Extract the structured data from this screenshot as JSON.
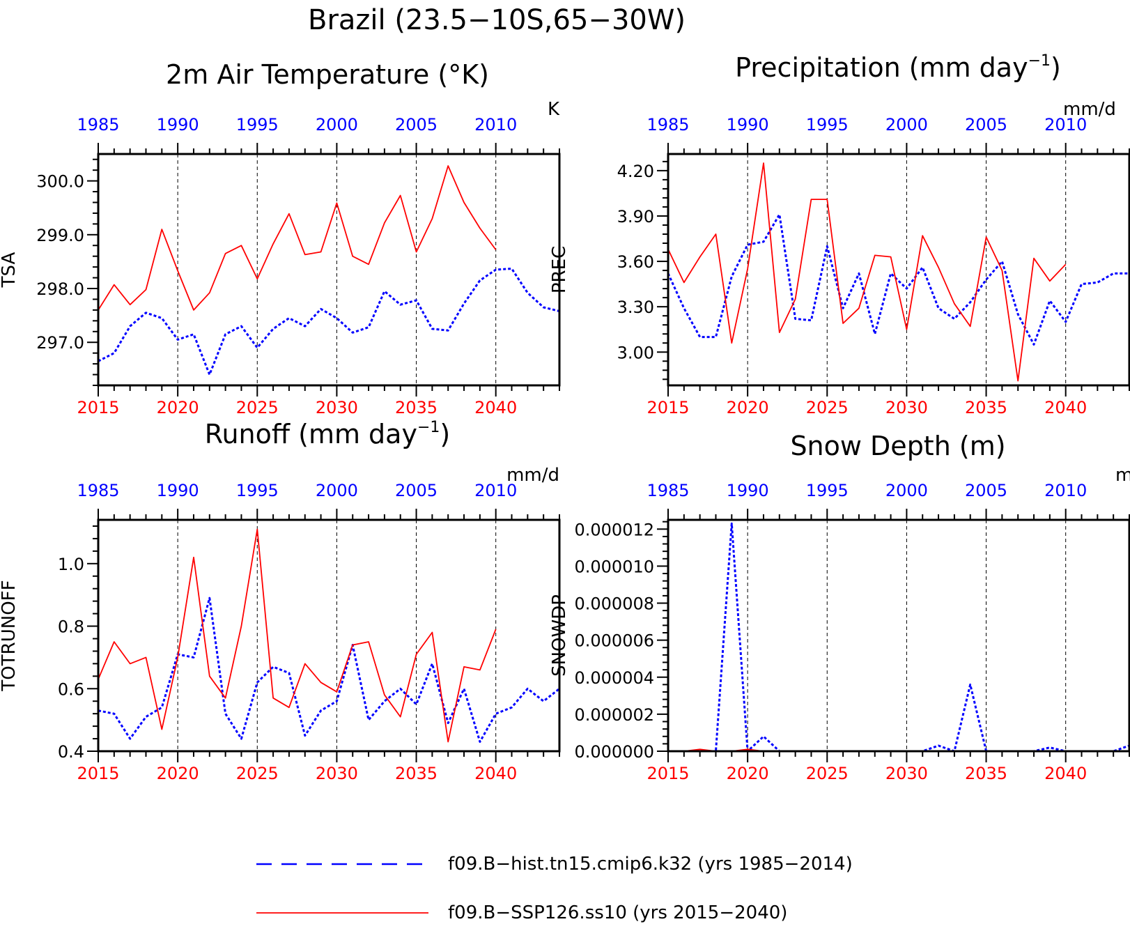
{
  "figure": {
    "title": "Brazil (23.5−10S,65−30W)"
  },
  "colors": {
    "hist": "#0000ff",
    "future": "#ff0000",
    "axis": "#000000"
  },
  "legend": [
    {
      "label": "f09.B−hist.tn15.cmip6.k32 (yrs 1985−2014)",
      "color": "#0000ff",
      "style": "dashed"
    },
    {
      "label": "f09.B−SSP126.ss10 (yrs 2015−2040)",
      "color": "#ff0000",
      "style": "solid"
    }
  ],
  "chart_data": [
    {
      "type": "line",
      "title": "2m Air Temperature (°K)",
      "title_sup": "",
      "title_end": "",
      "ylabel": "TSA",
      "units": "K",
      "ylim": [
        296.2,
        300.5
      ],
      "yticks": [
        297.0,
        298.0,
        299.0,
        300.0
      ],
      "ytick_labels": [
        "297.0",
        "298.0",
        "299.0",
        "300.0"
      ],
      "bottom_xlim": [
        2015,
        2044
      ],
      "bottom_ticks": [
        2015,
        2020,
        2025,
        2030,
        2035,
        2040
      ],
      "top_ticks": [
        1985,
        1990,
        1995,
        2000,
        2005,
        2010
      ],
      "series": [
        {
          "years": [
            1985,
            1986,
            1987,
            1988,
            1989,
            1990,
            1991,
            1992,
            1993,
            1994,
            1995,
            1996,
            1997,
            1998,
            1999,
            2000,
            2001,
            2002,
            2003,
            2004,
            2005,
            2006,
            2007,
            2008,
            2009,
            2010,
            2011,
            2012,
            2013,
            2014
          ],
          "values": [
            296.65,
            296.8,
            297.3,
            297.55,
            297.45,
            297.05,
            297.15,
            296.4,
            297.15,
            297.3,
            296.9,
            297.25,
            297.45,
            297.3,
            297.62,
            297.45,
            297.18,
            297.28,
            297.95,
            297.7,
            297.78,
            297.25,
            297.22,
            297.72,
            298.15,
            298.35,
            298.37,
            297.92,
            297.65,
            297.58
          ]
        },
        {
          "years": [
            2015,
            2016,
            2017,
            2018,
            2019,
            2020,
            2021,
            2022,
            2023,
            2024,
            2025,
            2026,
            2027,
            2028,
            2029,
            2030,
            2031,
            2032,
            2033,
            2034,
            2035,
            2036,
            2037,
            2038,
            2039,
            2040
          ],
          "values": [
            297.6,
            298.07,
            297.7,
            297.98,
            299.1,
            298.33,
            297.6,
            297.92,
            298.65,
            298.8,
            298.18,
            298.83,
            299.39,
            298.63,
            298.68,
            299.59,
            298.6,
            298.45,
            299.22,
            299.73,
            298.68,
            299.3,
            300.28,
            299.6,
            299.12,
            298.72
          ]
        }
      ]
    },
    {
      "type": "line",
      "title": "Precipitation (mm day",
      "title_sup": "−1",
      "title_end": ")",
      "ylabel": "PREC",
      "units": "mm/d",
      "ylim": [
        2.78,
        4.31
      ],
      "yticks": [
        3.0,
        3.3,
        3.6,
        3.9,
        4.2
      ],
      "ytick_labels": [
        "3.00",
        "3.30",
        "3.60",
        "3.90",
        "4.20"
      ],
      "bottom_xlim": [
        2015,
        2044
      ],
      "bottom_ticks": [
        2015,
        2020,
        2025,
        2030,
        2035,
        2040
      ],
      "top_ticks": [
        1985,
        1990,
        1995,
        2000,
        2005,
        2010
      ],
      "series": [
        {
          "years": [
            1985,
            1986,
            1987,
            1988,
            1989,
            1990,
            1991,
            1992,
            1993,
            1994,
            1995,
            1996,
            1997,
            1998,
            1999,
            2000,
            2001,
            2002,
            2003,
            2004,
            2005,
            2006,
            2007,
            2008,
            2009,
            2010,
            2011,
            2012,
            2013,
            2014
          ],
          "values": [
            3.52,
            3.29,
            3.1,
            3.1,
            3.5,
            3.71,
            3.73,
            3.91,
            3.22,
            3.21,
            3.7,
            3.29,
            3.52,
            3.12,
            3.52,
            3.42,
            3.56,
            3.29,
            3.22,
            3.33,
            3.48,
            3.6,
            3.25,
            3.05,
            3.34,
            3.2,
            3.45,
            3.46,
            3.52,
            3.52
          ]
        },
        {
          "years": [
            2015,
            2016,
            2017,
            2018,
            2019,
            2020,
            2021,
            2022,
            2023,
            2024,
            2025,
            2026,
            2027,
            2028,
            2029,
            2030,
            2031,
            2032,
            2033,
            2034,
            2035,
            2036,
            2037,
            2038,
            2039,
            2040
          ],
          "values": [
            3.68,
            3.46,
            3.63,
            3.78,
            3.06,
            3.55,
            4.25,
            3.13,
            3.35,
            4.01,
            4.01,
            3.19,
            3.29,
            3.64,
            3.63,
            3.15,
            3.77,
            3.56,
            3.32,
            3.17,
            3.76,
            3.54,
            2.81,
            3.62,
            3.47,
            3.58
          ]
        }
      ]
    },
    {
      "type": "line",
      "title": "Runoff (mm day",
      "title_sup": "−1",
      "title_end": ")",
      "ylabel": "TOTRUNOFF",
      "units": "mm/d",
      "ylim": [
        0.4,
        1.14
      ],
      "yticks": [
        0.4,
        0.6,
        0.8,
        1.0
      ],
      "ytick_labels": [
        "0.4",
        "0.6",
        "0.8",
        "1.0"
      ],
      "bottom_xlim": [
        2015,
        2044
      ],
      "bottom_ticks": [
        2015,
        2020,
        2025,
        2030,
        2035,
        2040
      ],
      "top_ticks": [
        1985,
        1990,
        1995,
        2000,
        2005,
        2010
      ],
      "series": [
        {
          "years": [
            1985,
            1986,
            1987,
            1988,
            1989,
            1990,
            1991,
            1992,
            1993,
            1994,
            1995,
            1996,
            1997,
            1998,
            1999,
            2000,
            2001,
            2002,
            2003,
            2004,
            2005,
            2006,
            2007,
            2008,
            2009,
            2010,
            2011,
            2012,
            2013,
            2014
          ],
          "values": [
            0.53,
            0.52,
            0.44,
            0.51,
            0.54,
            0.71,
            0.7,
            0.89,
            0.52,
            0.44,
            0.62,
            0.67,
            0.65,
            0.45,
            0.53,
            0.56,
            0.74,
            0.5,
            0.56,
            0.6,
            0.55,
            0.68,
            0.49,
            0.6,
            0.43,
            0.52,
            0.54,
            0.6,
            0.56,
            0.6
          ]
        },
        {
          "years": [
            2015,
            2016,
            2017,
            2018,
            2019,
            2020,
            2021,
            2022,
            2023,
            2024,
            2025,
            2026,
            2027,
            2028,
            2029,
            2030,
            2031,
            2032,
            2033,
            2034,
            2035,
            2036,
            2037,
            2038,
            2039,
            2040
          ],
          "values": [
            0.63,
            0.75,
            0.68,
            0.7,
            0.47,
            0.7,
            1.02,
            0.64,
            0.57,
            0.8,
            1.11,
            0.57,
            0.54,
            0.68,
            0.62,
            0.59,
            0.74,
            0.75,
            0.58,
            0.51,
            0.71,
            0.78,
            0.43,
            0.67,
            0.66,
            0.79
          ]
        }
      ]
    },
    {
      "type": "line",
      "title": "Snow Depth (m)",
      "title_sup": "",
      "title_end": "",
      "ylabel": "SNOWDP",
      "units": "m",
      "ylim": [
        0,
        1.25e-05
      ],
      "yticks": [
        0,
        2e-06,
        4e-06,
        6e-06,
        8e-06,
        1e-05,
        1.2e-05
      ],
      "ytick_labels": [
        "0.000000",
        "0.000002",
        "0.000004",
        "0.000006",
        "0.000008",
        "0.000010",
        "0.000012"
      ],
      "bottom_xlim": [
        2015,
        2044
      ],
      "bottom_ticks": [
        2015,
        2020,
        2025,
        2030,
        2035,
        2040
      ],
      "top_ticks": [
        1985,
        1990,
        1995,
        2000,
        2005,
        2010
      ],
      "series": [
        {
          "years": [
            1985,
            1986,
            1987,
            1988,
            1989,
            1990,
            1991,
            1992,
            1993,
            1994,
            1995,
            1996,
            1997,
            1998,
            1999,
            2000,
            2001,
            2002,
            2003,
            2004,
            2005,
            2006,
            2007,
            2008,
            2009,
            2010,
            2011,
            2012,
            2013,
            2014
          ],
          "values": [
            0,
            0,
            0,
            0,
            1.23e-05,
            0,
            8e-07,
            0,
            0,
            0,
            0,
            0,
            0,
            0,
            0,
            0,
            0,
            3e-07,
            0,
            3.6e-06,
            0,
            0,
            0,
            0,
            2e-07,
            0,
            0,
            0,
            0,
            3e-07
          ]
        },
        {
          "years": [
            2015,
            2016,
            2017,
            2018,
            2019,
            2020,
            2021,
            2022,
            2023,
            2024,
            2025,
            2026,
            2027,
            2028,
            2029,
            2030,
            2031,
            2032,
            2033,
            2034,
            2035,
            2036,
            2037,
            2038,
            2039,
            2040
          ],
          "values": [
            0,
            0,
            1e-07,
            0,
            0,
            1e-07,
            0,
            0,
            0,
            0,
            0,
            0,
            0,
            0,
            0,
            0,
            0,
            0,
            0,
            0,
            0,
            0,
            0,
            0,
            0,
            0
          ]
        }
      ]
    }
  ]
}
